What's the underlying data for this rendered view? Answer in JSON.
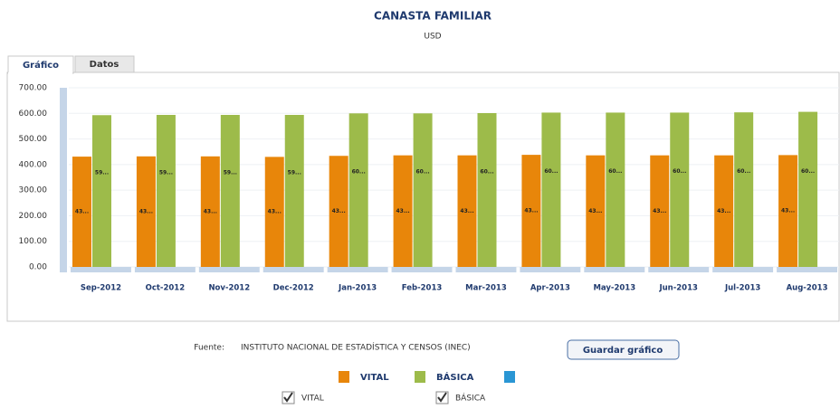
{
  "chart_data": {
    "type": "bar",
    "title": "CANASTA FAMILIAR",
    "subtitle": "USD",
    "categories": [
      "Sep-2012",
      "Oct-2012",
      "Nov-2012",
      "Dec-2012",
      "Jan-2013",
      "Feb-2013",
      "Mar-2013",
      "Apr-2013",
      "May-2013",
      "Jun-2013",
      "Jul-2013",
      "Aug-2013"
    ],
    "series": [
      {
        "name": "VITAL",
        "color": "#e8860a",
        "values": [
          431,
          432,
          432,
          430,
          434,
          436,
          436,
          438,
          436,
          436,
          436,
          437
        ],
        "value_labels": [
          "43...",
          "43...",
          "43...",
          "43...",
          "43...",
          "43...",
          "43...",
          "43...",
          "43...",
          "43...",
          "43...",
          "43..."
        ]
      },
      {
        "name": "BÁSICA",
        "color": "#9dbb4a",
        "values": [
          593,
          594,
          594,
          594,
          600,
          600,
          601,
          603,
          603,
          603,
          604,
          606
        ],
        "value_labels": [
          "59...",
          "59...",
          "59...",
          "59...",
          "60...",
          "60...",
          "60...",
          "60...",
          "60...",
          "60...",
          "60...",
          "60..."
        ]
      }
    ],
    "ylim": [
      0,
      700
    ],
    "yticks": [
      {
        "value": 0,
        "label": "0.00"
      },
      {
        "value": 100,
        "label": "100.00"
      },
      {
        "value": 200,
        "label": "200.00"
      },
      {
        "value": 300,
        "label": "300.00"
      },
      {
        "value": 400,
        "label": "400.00"
      },
      {
        "value": 500,
        "label": "500.00"
      },
      {
        "value": 600,
        "label": "600.00"
      },
      {
        "value": 700,
        "label": "700.00"
      }
    ],
    "grid": true
  },
  "tabs": [
    "Gráfico",
    "Datos"
  ],
  "source": {
    "label": "Fuente:",
    "text": "INSTITUTO NACIONAL DE ESTADÍSTICA Y CENSOS (INEC)"
  },
  "button": "Guardar gráfico"
}
